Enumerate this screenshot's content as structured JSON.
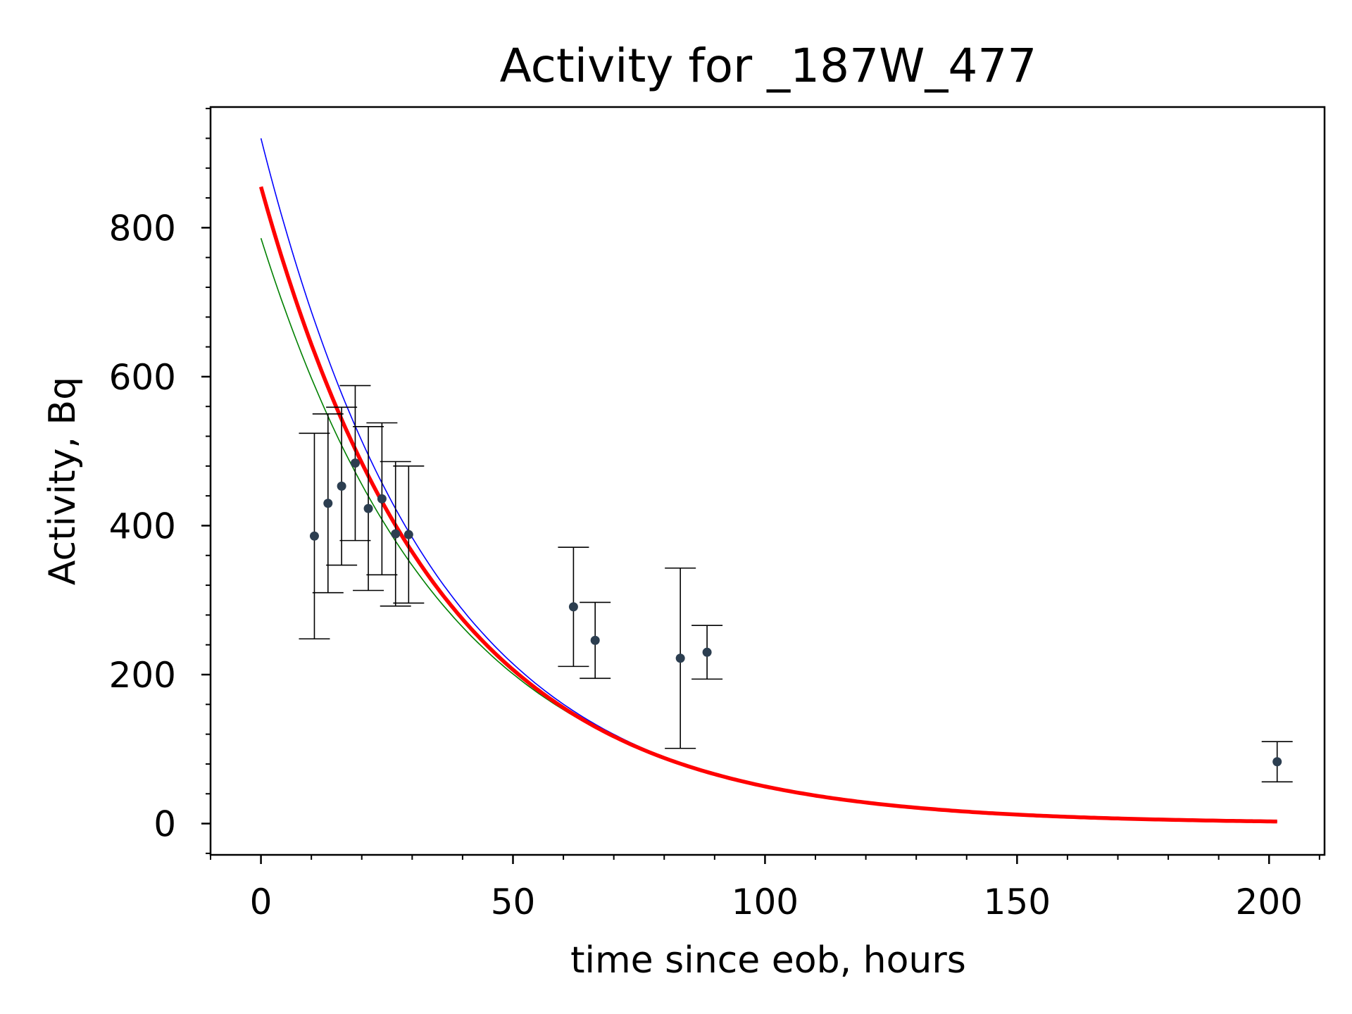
{
  "chart_data": {
    "type": "scatter",
    "title": "Activity for _187W_477",
    "xlabel": "time since eob, hours",
    "ylabel": "Activity, Bq",
    "xlim": [
      -10,
      211
    ],
    "ylim": [
      -42,
      962
    ],
    "xticks": [
      0,
      50,
      100,
      150,
      200
    ],
    "xtick_labels": [
      "0",
      "50",
      "100",
      "150",
      "200"
    ],
    "yticks": [
      0,
      200,
      400,
      600,
      800
    ],
    "ytick_labels": [
      "0",
      "200",
      "400",
      "600",
      "800"
    ],
    "grid": false,
    "legend": "none",
    "colors": {
      "points": "#2c3e50",
      "errorbars": "#000000",
      "fit": "#ff0000",
      "upper": "#0000ff",
      "lower": "#008000"
    },
    "points": [
      {
        "x": 10.6,
        "y": 386,
        "err": 138
      },
      {
        "x": 13.3,
        "y": 430,
        "err": 120
      },
      {
        "x": 16.0,
        "y": 453,
        "err": 106
      },
      {
        "x": 18.7,
        "y": 484,
        "err": 104
      },
      {
        "x": 21.3,
        "y": 423,
        "err": 110
      },
      {
        "x": 24.0,
        "y": 436,
        "err": 102
      },
      {
        "x": 26.7,
        "y": 389,
        "err": 97
      },
      {
        "x": 29.3,
        "y": 388,
        "err": 92
      },
      {
        "x": 62.0,
        "y": 291,
        "err": 80
      },
      {
        "x": 66.3,
        "y": 246,
        "err": 51
      },
      {
        "x": 83.2,
        "y": 222,
        "err": 121
      },
      {
        "x": 88.5,
        "y": 230,
        "err": 36
      },
      {
        "x": 201.6,
        "y": 83,
        "err": 27
      }
    ],
    "fit_curves": [
      {
        "role": "upper",
        "A0": 920,
        "half_life": 23.8,
        "x_start": 0,
        "x_end": 201.6
      },
      {
        "role": "lower",
        "A0": 786,
        "half_life": 25.4,
        "x_start": 0,
        "x_end": 201.6
      },
      {
        "role": "fit",
        "A0": 855,
        "half_life": 24.4,
        "x_start": 0,
        "x_end": 201.6
      }
    ]
  }
}
